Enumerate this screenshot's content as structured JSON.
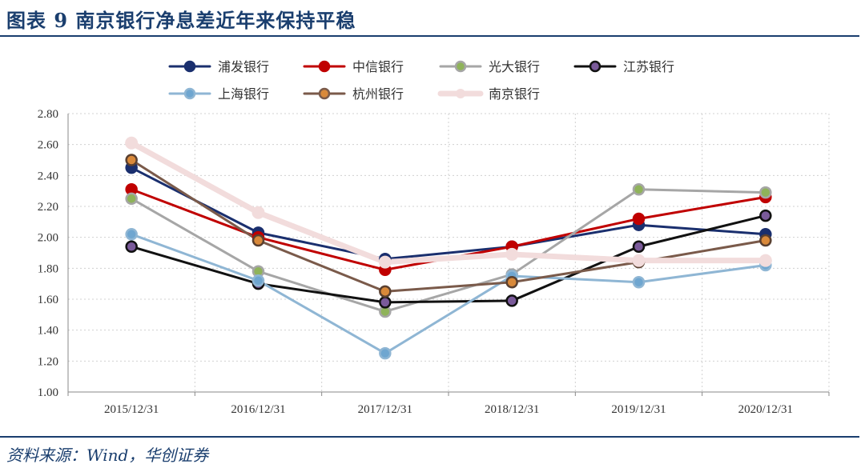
{
  "header": {
    "title": "图表 9   南京银行净息差近年来保持平稳"
  },
  "footer": {
    "source": "资料来源：Wind，华创证券"
  },
  "chart_data": {
    "type": "line",
    "categories": [
      "2015/12/31",
      "2016/12/31",
      "2017/12/31",
      "2018/12/31",
      "2019/12/31",
      "2020/12/31"
    ],
    "ylim": [
      1.0,
      2.8
    ],
    "yticks": [
      "1.00",
      "1.20",
      "1.40",
      "1.60",
      "1.80",
      "2.00",
      "2.20",
      "2.40",
      "2.60",
      "2.80"
    ],
    "grid": true,
    "legend_position": "top",
    "series": [
      {
        "name": "浦发银行",
        "values": [
          2.45,
          2.03,
          1.86,
          1.94,
          2.08,
          2.02
        ],
        "color": "#1a2f6e",
        "marker": "#1a2f6e"
      },
      {
        "name": "中信银行",
        "values": [
          2.31,
          2.0,
          1.79,
          1.94,
          2.12,
          2.26
        ],
        "color": "#c00000",
        "marker": "#c00000"
      },
      {
        "name": "光大银行",
        "values": [
          2.25,
          1.78,
          1.52,
          1.76,
          2.31,
          2.29
        ],
        "color": "#a6a6a6",
        "marker": "#8fb35a"
      },
      {
        "name": "江苏银行",
        "values": [
          1.94,
          1.7,
          1.58,
          1.59,
          1.94,
          2.14
        ],
        "color": "#111111",
        "marker": "#7a5a9a"
      },
      {
        "name": "上海银行",
        "values": [
          2.02,
          1.72,
          1.25,
          1.75,
          1.71,
          1.82
        ],
        "color": "#8fb6d4",
        "marker": "#6fa6d0"
      },
      {
        "name": "杭州银行",
        "values": [
          2.5,
          1.98,
          1.65,
          1.71,
          1.84,
          1.98
        ],
        "color": "#7a5a4a",
        "marker": "#d9893a"
      },
      {
        "name": "南京银行",
        "values": [
          2.61,
          2.16,
          1.84,
          1.89,
          1.85,
          1.85
        ],
        "color": "#f2dcdc",
        "marker": "#f2dcdc"
      }
    ]
  }
}
